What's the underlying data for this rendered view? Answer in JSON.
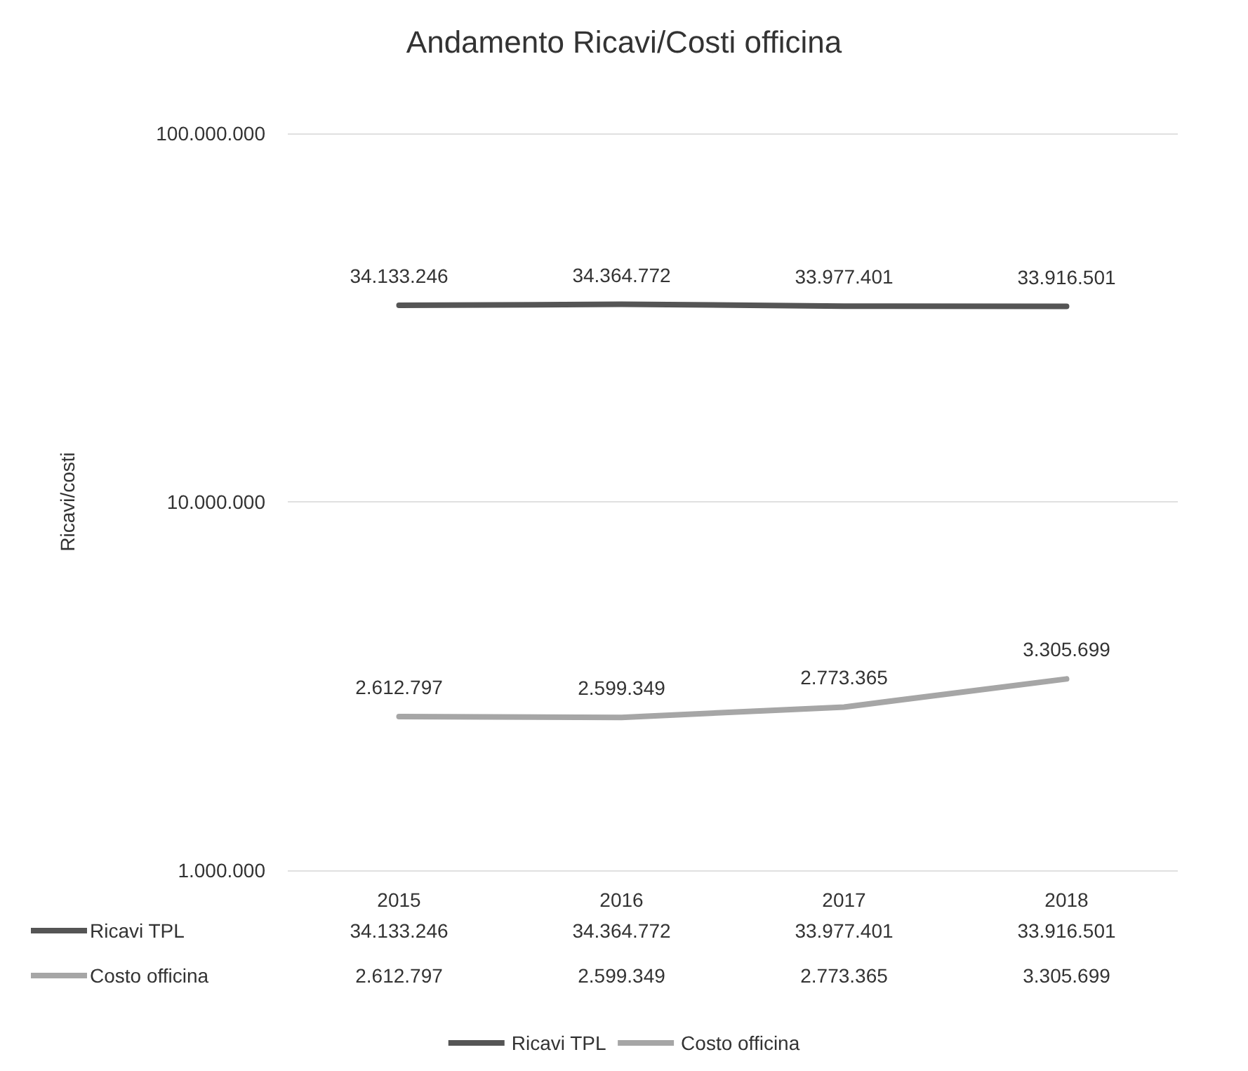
{
  "chart_data": {
    "type": "line",
    "title": "Andamento Ricavi/Costi officina",
    "ylabel": "Ricavi/costi",
    "categories": [
      "2015",
      "2016",
      "2017",
      "2018"
    ],
    "series": [
      {
        "name": "Ricavi TPL",
        "color": "#555555",
        "values": [
          34133246,
          34364772,
          33977401,
          33916501
        ],
        "value_labels": [
          "34.133.246",
          "34.364.772",
          "33.977.401",
          "33.916.501"
        ]
      },
      {
        "name": "Costo officina",
        "color": "#a6a6a6",
        "values": [
          2612797,
          2599349,
          2773365,
          3305699
        ],
        "value_labels": [
          "2.612.797",
          "2.599.349",
          "2.773.365",
          "3.305.699"
        ]
      }
    ],
    "log": "y",
    "ylim": [
      1000000,
      100000000
    ],
    "yticks": [
      {
        "value": 1000000,
        "label": "1.000.000"
      },
      {
        "value": 10000000,
        "label": "10.000.000"
      },
      {
        "value": 100000000,
        "label": "100.000.000"
      }
    ],
    "grid": "y",
    "legend": "bottom",
    "marker": "none",
    "line_style": "solid"
  }
}
